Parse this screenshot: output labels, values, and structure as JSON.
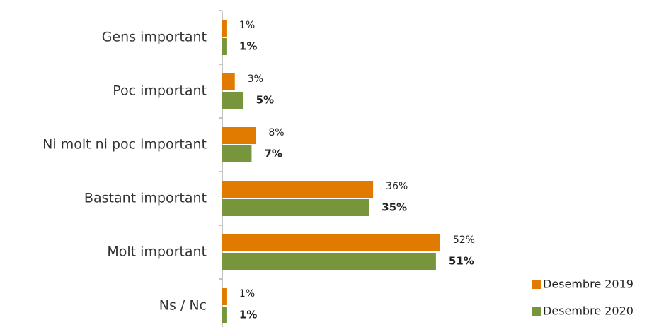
{
  "chart_data": {
    "type": "bar",
    "orientation": "horizontal",
    "categories": [
      "Gens important",
      "Poc important",
      "Ni molt ni poc important",
      "Bastant important",
      "Molt important",
      "Ns / Nc"
    ],
    "series": [
      {
        "name": "Desembre 2019",
        "color": "#e07b00",
        "values": [
          1,
          3,
          8,
          36,
          52,
          1
        ],
        "value_labels": [
          "1%",
          "3%",
          "8%",
          "36%",
          "52%",
          "1%"
        ]
      },
      {
        "name": "Desembre 2020",
        "color": "#77963b",
        "values": [
          1,
          5,
          7,
          35,
          51,
          1
        ],
        "value_labels": [
          "1%",
          "5%",
          "7%",
          "35%",
          "51%",
          "1%"
        ]
      }
    ],
    "legend": "bottom-right"
  }
}
